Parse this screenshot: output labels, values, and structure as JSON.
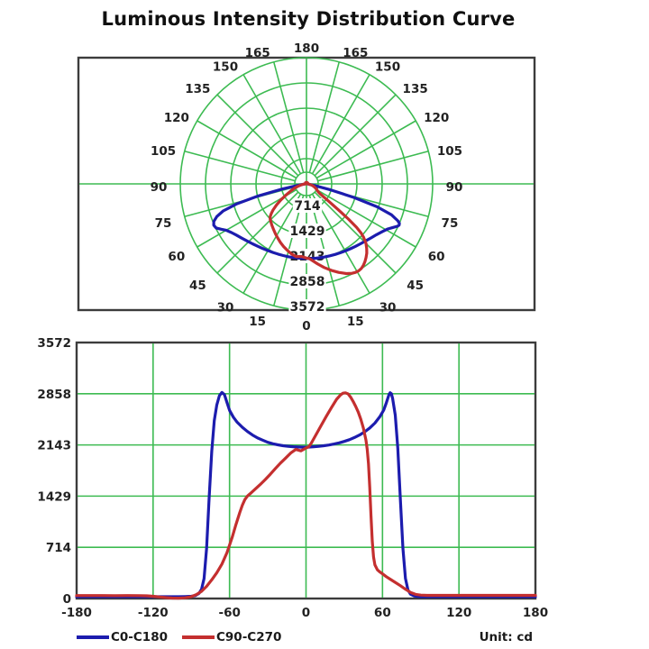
{
  "title": "Luminous Intensity Distribution Curve",
  "colors": {
    "grid": "#3dbb52",
    "frame": "#3c3c3c",
    "c0": "#1c1cae",
    "c90": "#c42f2f",
    "text": "#222222",
    "background": "#ffffff"
  },
  "legend": {
    "items": [
      {
        "label": "C0-C180",
        "color": "#1c1cae"
      },
      {
        "label": "C90-C270",
        "color": "#c42f2f"
      }
    ],
    "unit": "Unit: cd"
  },
  "chart_data": {
    "type": [
      "polar",
      "line"
    ],
    "title": "Luminous Intensity Distribution Curve",
    "unit": "cd",
    "polar": {
      "angle_ticks_deg": [
        0,
        15,
        30,
        45,
        60,
        75,
        90,
        105,
        120,
        135,
        150,
        165,
        180
      ],
      "ring_values_cd": [
        714,
        1429,
        2143,
        2858,
        3572
      ],
      "rmax": 3572,
      "angle_zero_position": "bottom",
      "grid": true
    },
    "cartesian": {
      "x_ticks": [
        -180,
        -120,
        -60,
        0,
        60,
        120,
        180
      ],
      "y_ticks": [
        0,
        714,
        1429,
        2143,
        2858,
        3572
      ],
      "xlim": [
        -180,
        180
      ],
      "ylim": [
        0,
        3572
      ],
      "grid": true,
      "legend_position": "bottom"
    },
    "series": [
      {
        "name": "C0-C180",
        "color": "#1c1cae",
        "points": [
          [
            -180,
            25
          ],
          [
            -160,
            25
          ],
          [
            -140,
            25
          ],
          [
            -120,
            25
          ],
          [
            -110,
            25
          ],
          [
            -100,
            25
          ],
          [
            -95,
            28
          ],
          [
            -90,
            32
          ],
          [
            -87,
            40
          ],
          [
            -84,
            70
          ],
          [
            -82,
            130
          ],
          [
            -80,
            280
          ],
          [
            -78,
            700
          ],
          [
            -76,
            1400
          ],
          [
            -74,
            2050
          ],
          [
            -72,
            2480
          ],
          [
            -70,
            2700
          ],
          [
            -68,
            2830
          ],
          [
            -66,
            2875
          ],
          [
            -64,
            2845
          ],
          [
            -62,
            2735
          ],
          [
            -60,
            2625
          ],
          [
            -57,
            2530
          ],
          [
            -54,
            2460
          ],
          [
            -50,
            2390
          ],
          [
            -46,
            2330
          ],
          [
            -42,
            2282
          ],
          [
            -38,
            2240
          ],
          [
            -34,
            2210
          ],
          [
            -30,
            2180
          ],
          [
            -26,
            2160
          ],
          [
            -22,
            2145
          ],
          [
            -18,
            2132
          ],
          [
            -14,
            2124
          ],
          [
            -10,
            2118
          ],
          [
            -6,
            2114
          ],
          [
            -2,
            2112
          ],
          [
            2,
            2113
          ],
          [
            6,
            2118
          ],
          [
            10,
            2124
          ],
          [
            14,
            2132
          ],
          [
            18,
            2142
          ],
          [
            22,
            2156
          ],
          [
            26,
            2172
          ],
          [
            30,
            2192
          ],
          [
            34,
            2216
          ],
          [
            38,
            2246
          ],
          [
            42,
            2282
          ],
          [
            46,
            2326
          ],
          [
            50,
            2380
          ],
          [
            54,
            2448
          ],
          [
            58,
            2540
          ],
          [
            61,
            2630
          ],
          [
            63,
            2730
          ],
          [
            65,
            2840
          ],
          [
            66,
            2872
          ],
          [
            67,
            2858
          ],
          [
            68,
            2790
          ],
          [
            70,
            2560
          ],
          [
            72,
            2100
          ],
          [
            74,
            1400
          ],
          [
            76,
            700
          ],
          [
            78,
            280
          ],
          [
            80,
            120
          ],
          [
            82,
            60
          ],
          [
            85,
            35
          ],
          [
            88,
            28
          ],
          [
            90,
            25
          ],
          [
            95,
            25
          ],
          [
            100,
            25
          ],
          [
            110,
            25
          ],
          [
            120,
            25
          ],
          [
            140,
            25
          ],
          [
            160,
            25
          ],
          [
            180,
            25
          ]
        ]
      },
      {
        "name": "C90-C270",
        "color": "#c42f2f",
        "points": [
          [
            -180,
            42
          ],
          [
            -160,
            42
          ],
          [
            -150,
            40
          ],
          [
            -140,
            42
          ],
          [
            -130,
            40
          ],
          [
            -125,
            38
          ],
          [
            -120,
            32
          ],
          [
            -115,
            22
          ],
          [
            -110,
            12
          ],
          [
            -105,
            6
          ],
          [
            -100,
            5
          ],
          [
            -95,
            10
          ],
          [
            -90,
            26
          ],
          [
            -86,
            55
          ],
          [
            -82,
            100
          ],
          [
            -78,
            170
          ],
          [
            -74,
            260
          ],
          [
            -70,
            360
          ],
          [
            -66,
            480
          ],
          [
            -62,
            640
          ],
          [
            -58,
            850
          ],
          [
            -55,
            1030
          ],
          [
            -52,
            1200
          ],
          [
            -50,
            1300
          ],
          [
            -48,
            1380
          ],
          [
            -46,
            1430
          ],
          [
            -44,
            1460
          ],
          [
            -40,
            1525
          ],
          [
            -36,
            1590
          ],
          [
            -32,
            1660
          ],
          [
            -28,
            1735
          ],
          [
            -24,
            1815
          ],
          [
            -20,
            1890
          ],
          [
            -16,
            1960
          ],
          [
            -12,
            2030
          ],
          [
            -8,
            2080
          ],
          [
            -4,
            2060
          ],
          [
            0,
            2100
          ],
          [
            2,
            2115
          ],
          [
            4,
            2165
          ],
          [
            8,
            2290
          ],
          [
            12,
            2420
          ],
          [
            16,
            2545
          ],
          [
            20,
            2665
          ],
          [
            24,
            2780
          ],
          [
            27,
            2840
          ],
          [
            29,
            2865
          ],
          [
            31,
            2870
          ],
          [
            33,
            2855
          ],
          [
            35,
            2810
          ],
          [
            37,
            2750
          ],
          [
            39,
            2680
          ],
          [
            41,
            2600
          ],
          [
            43,
            2500
          ],
          [
            45,
            2380
          ],
          [
            47,
            2210
          ],
          [
            48,
            2080
          ],
          [
            49,
            1880
          ],
          [
            50,
            1550
          ],
          [
            51,
            1150
          ],
          [
            52,
            800
          ],
          [
            53,
            580
          ],
          [
            54,
            470
          ],
          [
            56,
            400
          ],
          [
            58,
            370
          ],
          [
            60,
            345
          ],
          [
            63,
            305
          ],
          [
            66,
            270
          ],
          [
            70,
            225
          ],
          [
            74,
            180
          ],
          [
            78,
            130
          ],
          [
            82,
            85
          ],
          [
            86,
            58
          ],
          [
            90,
            48
          ],
          [
            95,
            44
          ],
          [
            100,
            44
          ],
          [
            110,
            44
          ],
          [
            120,
            44
          ],
          [
            140,
            44
          ],
          [
            160,
            44
          ],
          [
            180,
            44
          ]
        ]
      }
    ]
  }
}
